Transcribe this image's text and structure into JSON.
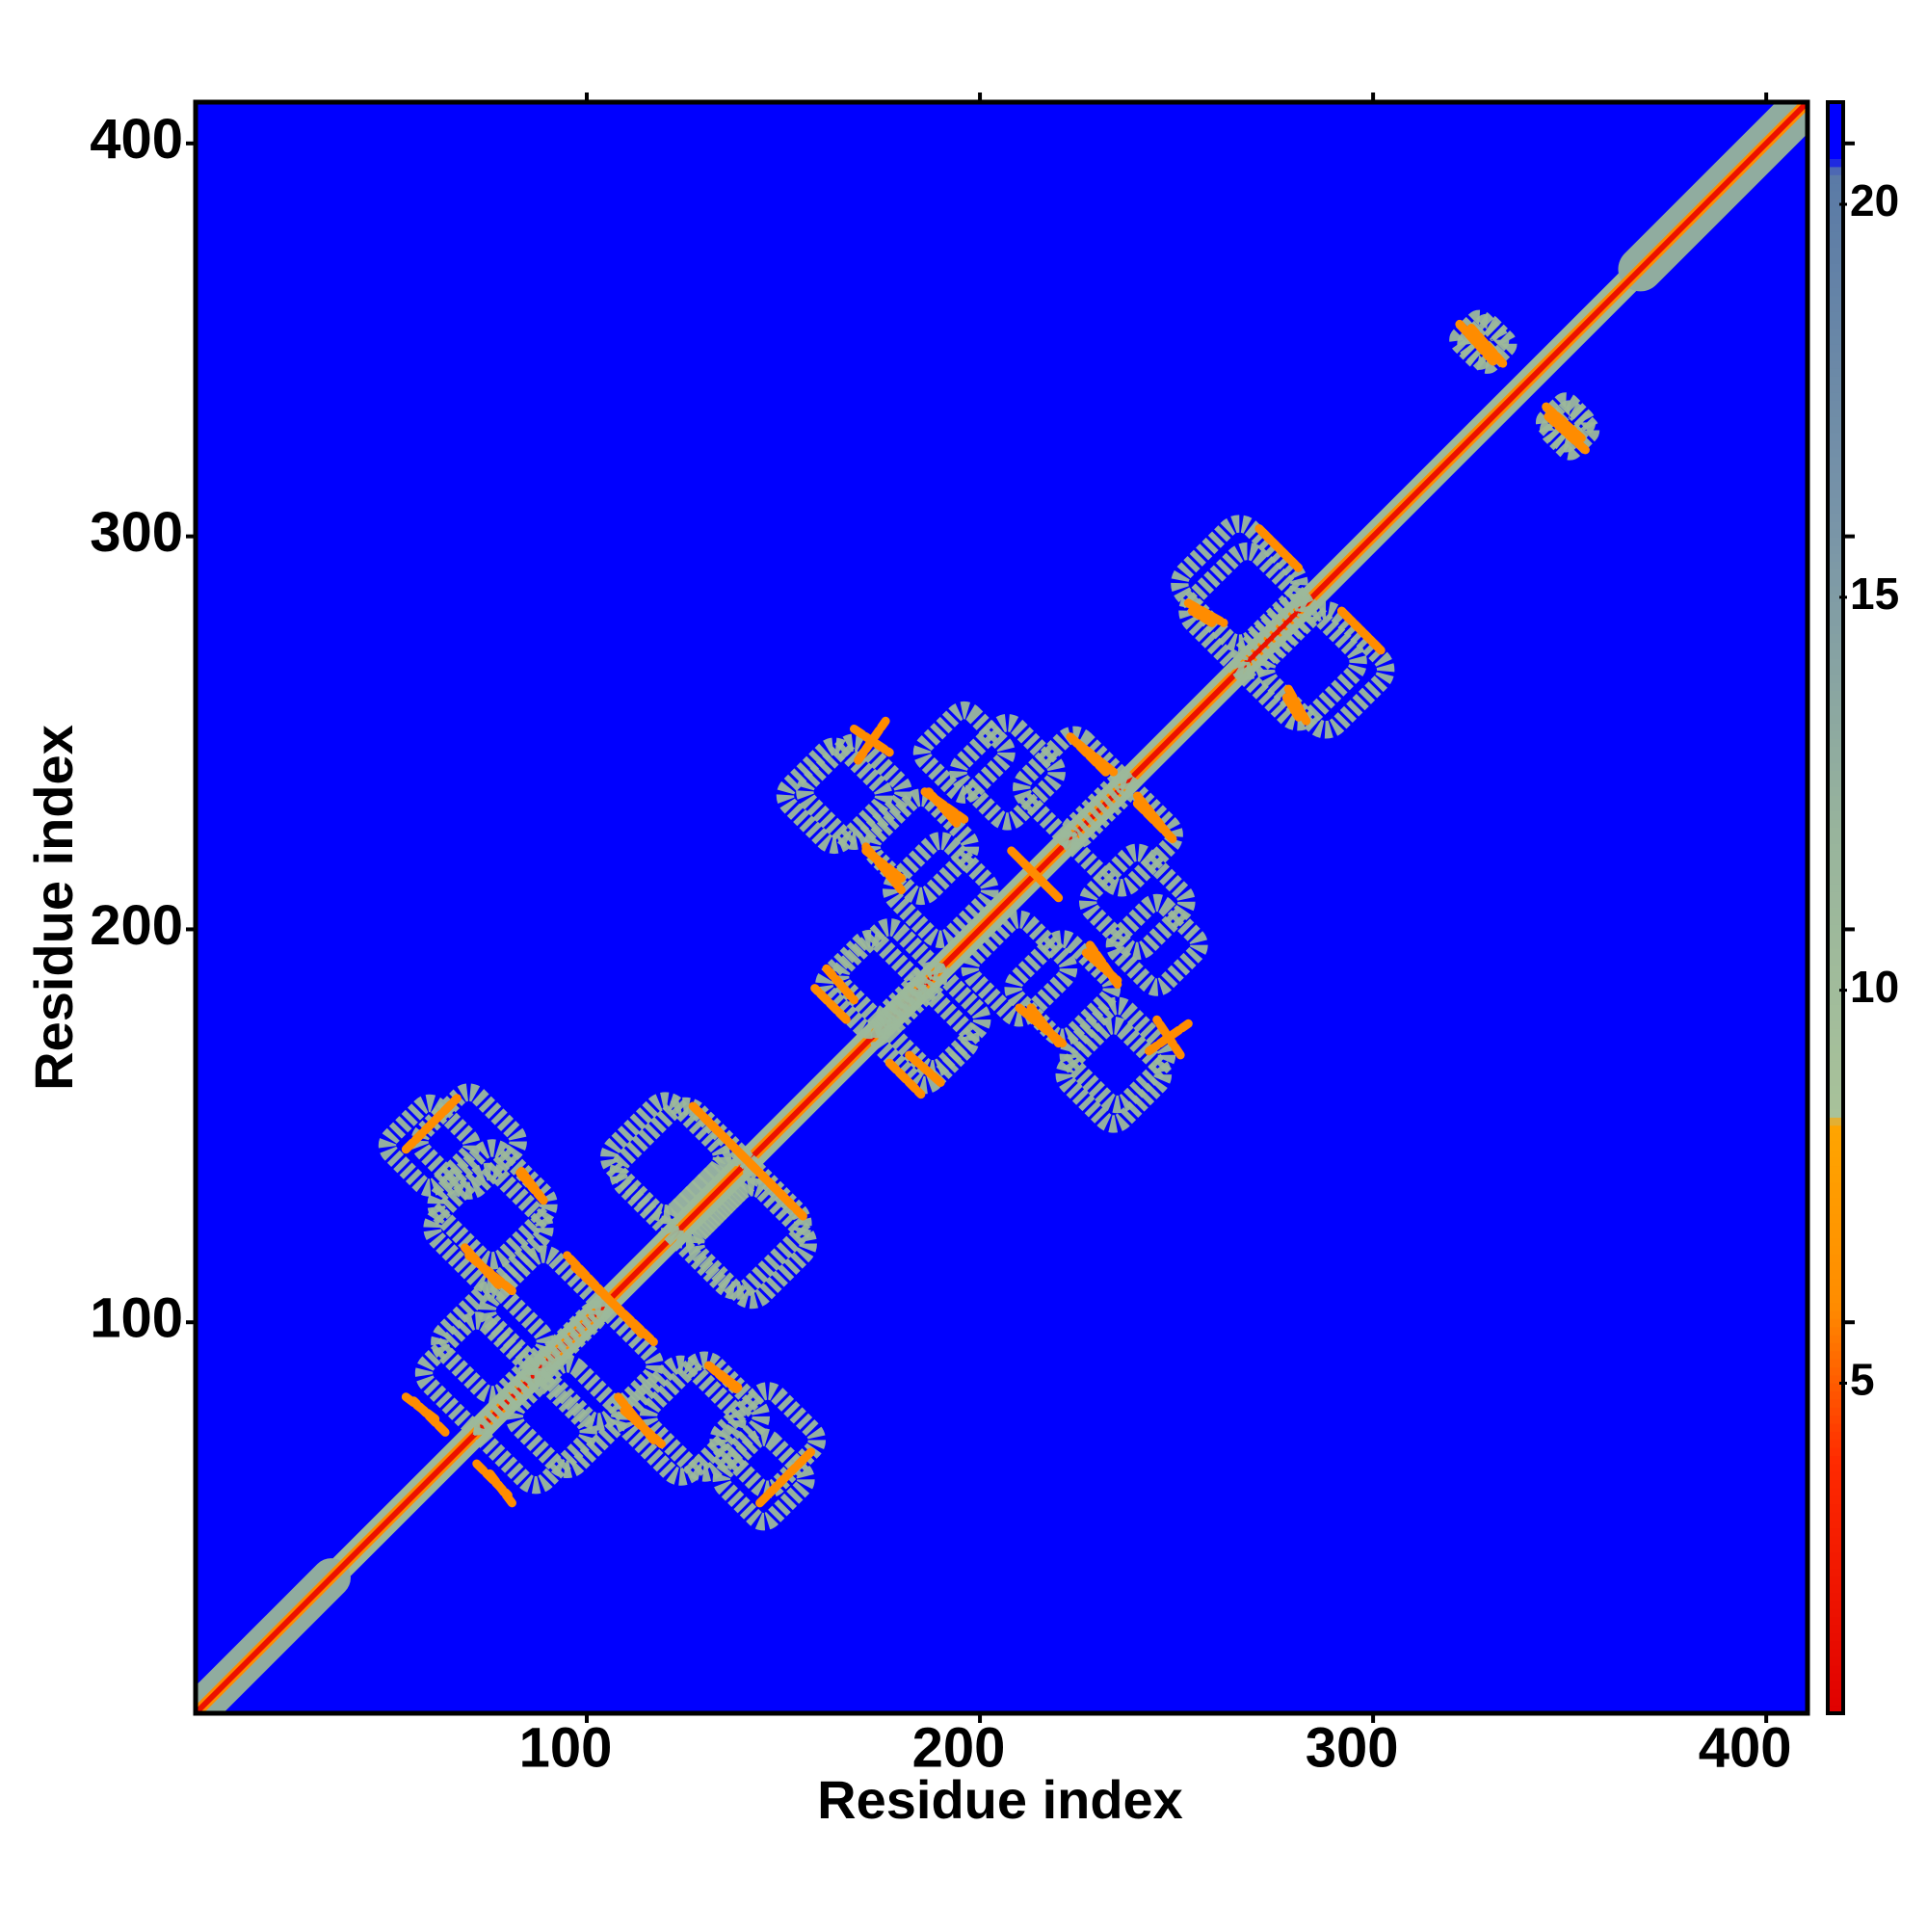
{
  "chart_data": {
    "type": "contact_map",
    "x_label": "Residue index",
    "y_label": "Residue index",
    "xlim": [
      0.5,
      410.5
    ],
    "ylim": [
      0.5,
      410.5
    ],
    "xticks": [
      100,
      200,
      300,
      400
    ],
    "yticks": [
      100,
      200,
      300,
      400
    ],
    "zlim": [
      0.8,
      21.3
    ],
    "zticks": [
      5,
      10,
      15,
      20
    ],
    "colorscale": [
      [
        0.8,
        "#e00000"
      ],
      [
        4,
        "#ff2a00"
      ],
      [
        6,
        "#ff8c00"
      ],
      [
        8.3,
        "#ffa500"
      ],
      [
        8.4,
        "#a8c29a"
      ],
      [
        12,
        "#98b49c"
      ],
      [
        16,
        "#7894a8"
      ],
      [
        20.4,
        "#5a7aa6"
      ],
      [
        20.6,
        "#0000ff"
      ]
    ],
    "background": 21,
    "diagonal": [
      [
        1,
        410,
        9,
        11
      ],
      [
        1,
        35,
        14,
        13
      ],
      [
        368,
        410,
        16,
        13
      ],
      [
        1,
        410,
        4,
        6
      ],
      [
        1,
        410,
        2,
        2
      ]
    ],
    "rings": [
      [
        76,
        130,
        16,
        11
      ],
      [
        125,
        138,
        19,
        11
      ],
      [
        142,
        120,
        16,
        11
      ],
      [
        89,
        103,
        16,
        11
      ],
      [
        72,
        87,
        15,
        11
      ],
      [
        124,
        75,
        16,
        11
      ],
      [
        146,
        70,
        14,
        11
      ],
      [
        95,
        76,
        15,
        11
      ],
      [
        60,
        145,
        12,
        11
      ],
      [
        168,
        235,
        14,
        11
      ],
      [
        196,
        245,
        12,
        11
      ],
      [
        224,
        236,
        15,
        11
      ],
      [
        240,
        207,
        14,
        11
      ],
      [
        190,
        210,
        14,
        11
      ],
      [
        177,
        188,
        14,
        11
      ],
      [
        221,
        185,
        14,
        11
      ],
      [
        234,
        163,
        14,
        11
      ],
      [
        186,
        172,
        13,
        11
      ],
      [
        268,
        281,
        17,
        11
      ],
      [
        288,
        266,
        17,
        11
      ],
      [
        327,
        350,
        6,
        11
      ],
      [
        349,
        329,
        6,
        11
      ]
    ],
    "contacts": [
      [
        83,
        138,
        89,
        131,
        6
      ],
      [
        69,
        119,
        78,
        109,
        6
      ],
      [
        97,
        114,
        117,
        95,
        6
      ],
      [
        127,
        155,
        152,
        130,
        6
      ],
      [
        54,
        81,
        62,
        75,
        6
      ],
      [
        108,
        81,
        117,
        70,
        6
      ],
      [
        72,
        64,
        80,
        56,
        6
      ],
      [
        131,
        89,
        139,
        83,
        6
      ],
      [
        144,
        54,
        157,
        67,
        6
      ],
      [
        161,
        190,
        168,
        182,
        6
      ],
      [
        171,
        220,
        180,
        213,
        6
      ],
      [
        168,
        251,
        177,
        245,
        6
      ],
      [
        186,
        235,
        196,
        228,
        6
      ],
      [
        208,
        220,
        218,
        210,
        6
      ],
      [
        224,
        248,
        234,
        240,
        6
      ],
      [
        240,
        232,
        249,
        223,
        6
      ],
      [
        227,
        194,
        235,
        187,
        6
      ],
      [
        210,
        180,
        221,
        171,
        6
      ],
      [
        177,
        166,
        185,
        158,
        6
      ],
      [
        243,
        169,
        253,
        176,
        6
      ],
      [
        271,
        302,
        281,
        292,
        6
      ],
      [
        253,
        283,
        262,
        278,
        6
      ],
      [
        292,
        281,
        301,
        272,
        6
      ],
      [
        278,
        259,
        281,
        254,
        6
      ],
      [
        322,
        354,
        331,
        344,
        6
      ],
      [
        344,
        333,
        353,
        325,
        6
      ]
    ]
  }
}
